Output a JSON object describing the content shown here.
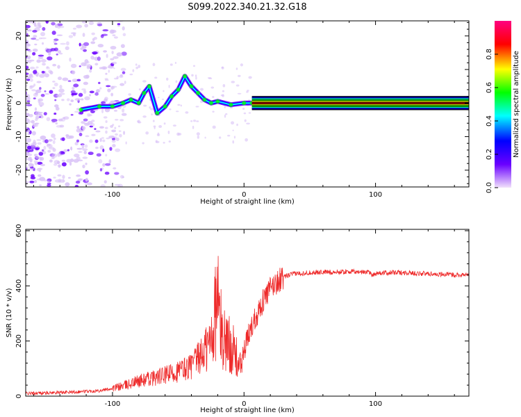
{
  "title": "S099.2022.340.21.32.G18",
  "chart_data": [
    {
      "type": "heatmap",
      "xlabel": "Height of straight line (km)",
      "ylabel": "Frequency (Hz)",
      "xlim": [
        -166,
        171
      ],
      "ylim": [
        -25,
        24.5
      ],
      "x_ticks": [
        -100,
        0,
        100
      ],
      "y_ticks": [
        -20,
        -10,
        0,
        10,
        20
      ],
      "grid": false,
      "colorbar": {
        "label": "Normalized spectral amplitude",
        "range": [
          0,
          1
        ],
        "ticks": [
          0.0,
          0.2,
          0.4,
          0.6,
          0.8
        ],
        "colors": [
          "#f1e1fb",
          "#6a00ff",
          "#0000ff",
          "#00ffff",
          "#00ff00",
          "#ffff00",
          "#ff0000",
          "#ff0080"
        ]
      },
      "ridge_trace": [
        {
          "x": -124,
          "y": -2
        },
        {
          "x": -110,
          "y": -1
        },
        {
          "x": -100,
          "y": -1
        },
        {
          "x": -92,
          "y": 0
        },
        {
          "x": -86,
          "y": 1
        },
        {
          "x": -80,
          "y": 0
        },
        {
          "x": -76,
          "y": 3
        },
        {
          "x": -72,
          "y": 5
        },
        {
          "x": -66,
          "y": -3
        },
        {
          "x": -60,
          "y": -1
        },
        {
          "x": -55,
          "y": 2
        },
        {
          "x": -50,
          "y": 4
        },
        {
          "x": -45,
          "y": 8
        },
        {
          "x": -40,
          "y": 5
        },
        {
          "x": -35,
          "y": 3
        },
        {
          "x": -30,
          "y": 1
        },
        {
          "x": -25,
          "y": 0
        },
        {
          "x": -20,
          "y": 0.5
        },
        {
          "x": -10,
          "y": -0.5
        },
        {
          "x": 0,
          "y": 0
        },
        {
          "x": 6,
          "y": 0
        },
        {
          "x": 171,
          "y": 0
        }
      ]
    },
    {
      "type": "line",
      "xlabel": "Height of straight line (km)",
      "ylabel": "SNR (10 * v/v)",
      "xlim": [
        -166,
        171
      ],
      "ylim": [
        0,
        605
      ],
      "x_ticks": [
        -100,
        0,
        100
      ],
      "y_ticks": [
        0,
        200,
        400,
        600
      ],
      "grid": false,
      "color": "#ee2a2a",
      "series": [
        {
          "x": [
            -166,
            -150,
            -130,
            -110,
            -100,
            -90,
            -80,
            -70,
            -60,
            -50,
            -40,
            -35,
            -30,
            -26,
            -24,
            -22,
            -20,
            -18,
            -16,
            -14,
            -12,
            -10,
            -8,
            -6,
            -4,
            -2,
            0,
            4,
            8,
            12,
            16,
            20,
            24,
            28,
            32,
            36,
            40,
            50,
            60,
            70,
            80,
            90,
            95,
            97,
            100,
            110,
            120,
            130,
            140,
            150,
            160,
            171
          ],
          "y": [
            10,
            12,
            15,
            20,
            28,
            40,
            55,
            65,
            75,
            90,
            110,
            135,
            160,
            190,
            240,
            300,
            360,
            260,
            200,
            220,
            180,
            200,
            160,
            140,
            110,
            120,
            160,
            230,
            280,
            320,
            360,
            390,
            410,
            425,
            435,
            442,
            445,
            448,
            450,
            450,
            452,
            450,
            452,
            440,
            445,
            448,
            448,
            446,
            444,
            442,
            440,
            440
          ]
        }
      ]
    }
  ]
}
